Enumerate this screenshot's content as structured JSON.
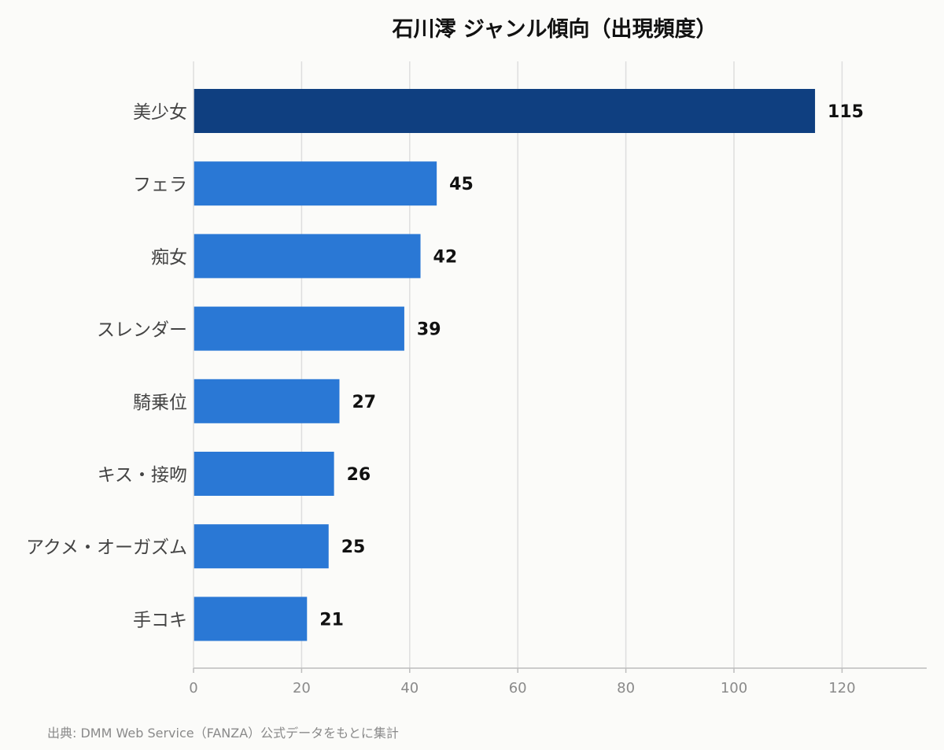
{
  "chart_data": {
    "type": "bar",
    "orientation": "horizontal",
    "title": "石川澪 ジャンル傾向（出現頻度）",
    "categories": [
      "美少女",
      "フェラ",
      "痴女",
      "スレンダー",
      "騎乗位",
      "キス・接吻",
      "アクメ・オーガズム",
      "手コキ"
    ],
    "values": [
      115,
      45,
      42,
      39,
      27,
      26,
      25,
      21
    ],
    "xlim": [
      0,
      135
    ],
    "xticks": [
      0,
      20,
      40,
      60,
      80,
      100,
      120
    ],
    "grid": true,
    "highlight_index": 0,
    "colors": {
      "highlight": "#0f3f80",
      "bar": "#2a78d5",
      "grid": "#dedede",
      "axis": "#bdbdbd"
    }
  },
  "source": "出典: DMM Web Service（FANZA）公式データをもとに集計"
}
